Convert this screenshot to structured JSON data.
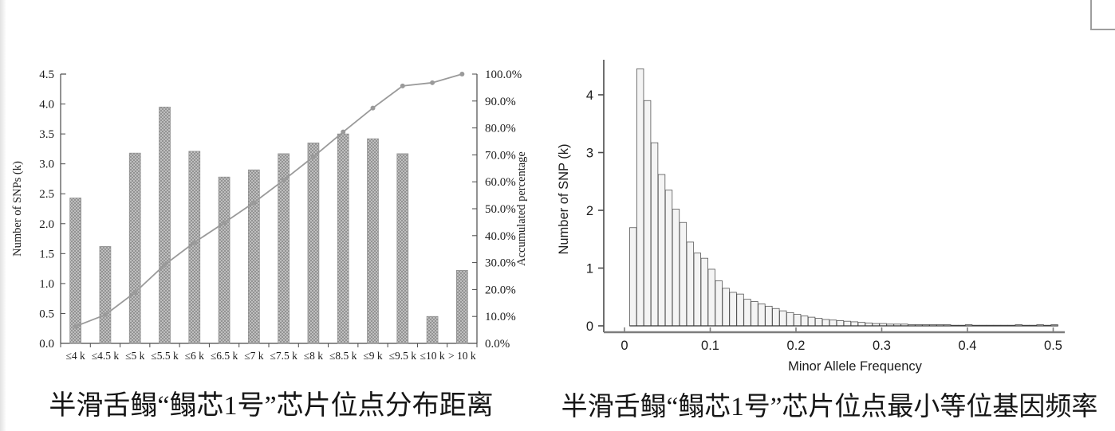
{
  "colors": {
    "bar_fill": "#cbcbcb",
    "bar_hatch": "#8a8a8a",
    "bar_stroke": "#8f8f8f",
    "cumulative_line": "#9a9a9a",
    "hist_fill": "#f4f4f4",
    "hist_stroke": "#565656",
    "axis": "#4a4a4a",
    "thick_x_axis": "#7d7d7d",
    "text": "#1c1c1c"
  },
  "decorations": {
    "top_right_corner_box": true,
    "left_edge_strip": true
  },
  "figures": [
    {
      "caption": "半滑舌鳎“鳎芯1号”芯片位点分布距离"
    },
    {
      "caption": "半滑舌鳎“鳎芯1号”芯片位点最小等位基因频率"
    }
  ],
  "chart_data": [
    {
      "type": "bar",
      "subtype": "pareto",
      "categories": [
        "≤4 k",
        "≤4.5 k",
        "≤5 k",
        "≤5.5 k",
        "≤6 k",
        "≤6.5 k",
        "≤7 k",
        "≤7.5 k",
        "≤8 k",
        "≤8.5 k",
        "≤9 k",
        "≤9.5 k",
        "≤10 k",
        "> 10 k"
      ],
      "series": [
        {
          "name": "Number of SNPs (k)",
          "type": "bar",
          "values": [
            2.43,
            1.62,
            3.18,
            3.95,
            3.21,
            2.78,
            2.9,
            3.17,
            3.35,
            3.5,
            3.42,
            3.17,
            0.45,
            1.22
          ]
        },
        {
          "name": "Accumulated percentage",
          "type": "line",
          "axis": "right",
          "values": [
            6.3,
            10.6,
            18.9,
            29.2,
            37.5,
            44.8,
            52.3,
            60.6,
            69.3,
            78.5,
            87.4,
            95.6,
            96.8,
            100.0
          ]
        }
      ],
      "ylabel": "Number of SNPs (k)",
      "ylabel_right": "Accumulated percentage",
      "ylim": [
        0,
        4.5
      ],
      "ylim_right": [
        0,
        100
      ],
      "yticks_left": [
        "0.0",
        "0.5",
        "1.0",
        "1.5",
        "2.0",
        "2.5",
        "3.0",
        "3.5",
        "4.0",
        "4.5"
      ],
      "yticks_right": [
        "0.0%",
        "10.0%",
        "20.0%",
        "30.0%",
        "40.0%",
        "50.0%",
        "60.0%",
        "70.0%",
        "80.0%",
        "90.0%",
        "100.0%"
      ],
      "grid": false,
      "legend": "none"
    },
    {
      "type": "bar",
      "subtype": "histogram",
      "xlabel": "Minor Allele Frequency",
      "ylabel": "Number of SNP (k)",
      "xlim": [
        0,
        0.5
      ],
      "ylim": [
        0,
        4.5
      ],
      "xticks": [
        "0",
        "0.1",
        "0.2",
        "0.3",
        "0.4",
        "0.5"
      ],
      "yticks": [
        "0",
        "1",
        "2",
        "3",
        "4"
      ],
      "bins": {
        "start": 0.006,
        "width": 0.00833
      },
      "values": [
        1.7,
        4.45,
        3.9,
        3.17,
        2.62,
        2.35,
        2.02,
        1.79,
        1.45,
        1.26,
        1.17,
        0.98,
        0.78,
        0.65,
        0.58,
        0.55,
        0.46,
        0.42,
        0.38,
        0.34,
        0.3,
        0.26,
        0.23,
        0.2,
        0.17,
        0.15,
        0.13,
        0.11,
        0.1,
        0.09,
        0.08,
        0.07,
        0.06,
        0.05,
        0.04,
        0.04,
        0.03,
        0.03,
        0.03,
        0.02,
        0.02,
        0.02,
        0.02,
        0.02,
        0.02,
        0.01,
        0.01,
        0.02,
        0.01,
        0.01,
        0.01,
        0.01,
        0.01,
        0.01,
        0.02,
        0.01,
        0.01,
        0.02,
        0.01,
        0.02
      ],
      "grid": false,
      "legend": "none"
    }
  ]
}
